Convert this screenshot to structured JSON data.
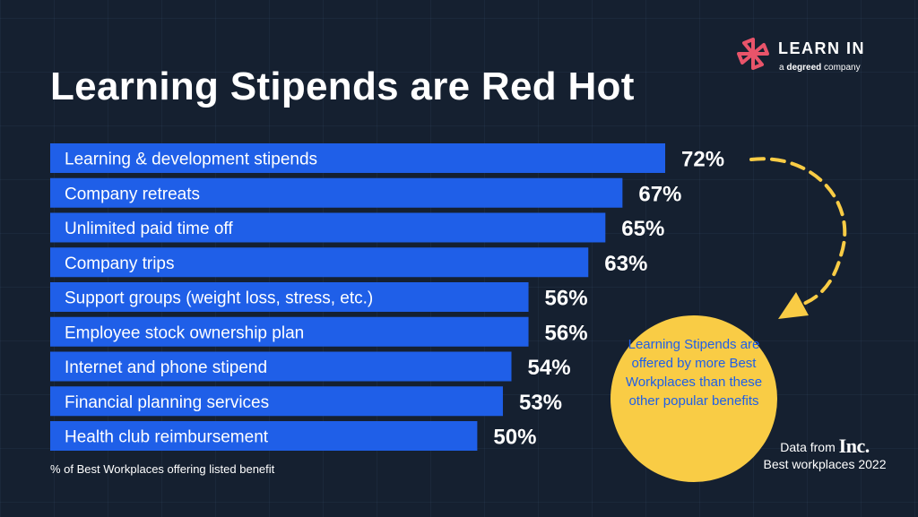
{
  "title": "Learning Stipends are Red Hot",
  "logo": {
    "name": "LEARN IN",
    "sub_prefix": "a ",
    "sub_brand": "degreed",
    "sub_suffix": " company"
  },
  "footnote": "% of Best Workplaces offering listed benefit",
  "callout": {
    "text": "Learning Stipends are offered by more Best Workplaces than these other popular benefits"
  },
  "source": {
    "prefix": "Data from",
    "brand": "Inc.",
    "line2": "Best workplaces 2022"
  },
  "colors": {
    "background": "#152030",
    "bar": "#1f5fe8",
    "callout": "#f9cc45",
    "logo_accent": "#e8546a"
  },
  "chart_data": {
    "type": "bar",
    "orientation": "horizontal",
    "unit": "%",
    "categories": [
      "Learning & development stipends",
      "Company retreats",
      "Unlimited paid time off",
      "Company trips",
      "Support groups (weight loss, stress, etc.)",
      "Employee stock ownership plan",
      "Internet and phone stipend",
      "Financial planning services",
      "Health club reimbursement"
    ],
    "values": [
      72,
      67,
      65,
      63,
      56,
      56,
      54,
      53,
      50
    ],
    "value_labels": [
      "72%",
      "67%",
      "65%",
      "63%",
      "56%",
      "56%",
      "54%",
      "53%",
      "50%"
    ],
    "title": "Learning Stipends are Red Hot",
    "xlabel": "% of Best Workplaces offering listed benefit",
    "ylabel": ""
  }
}
